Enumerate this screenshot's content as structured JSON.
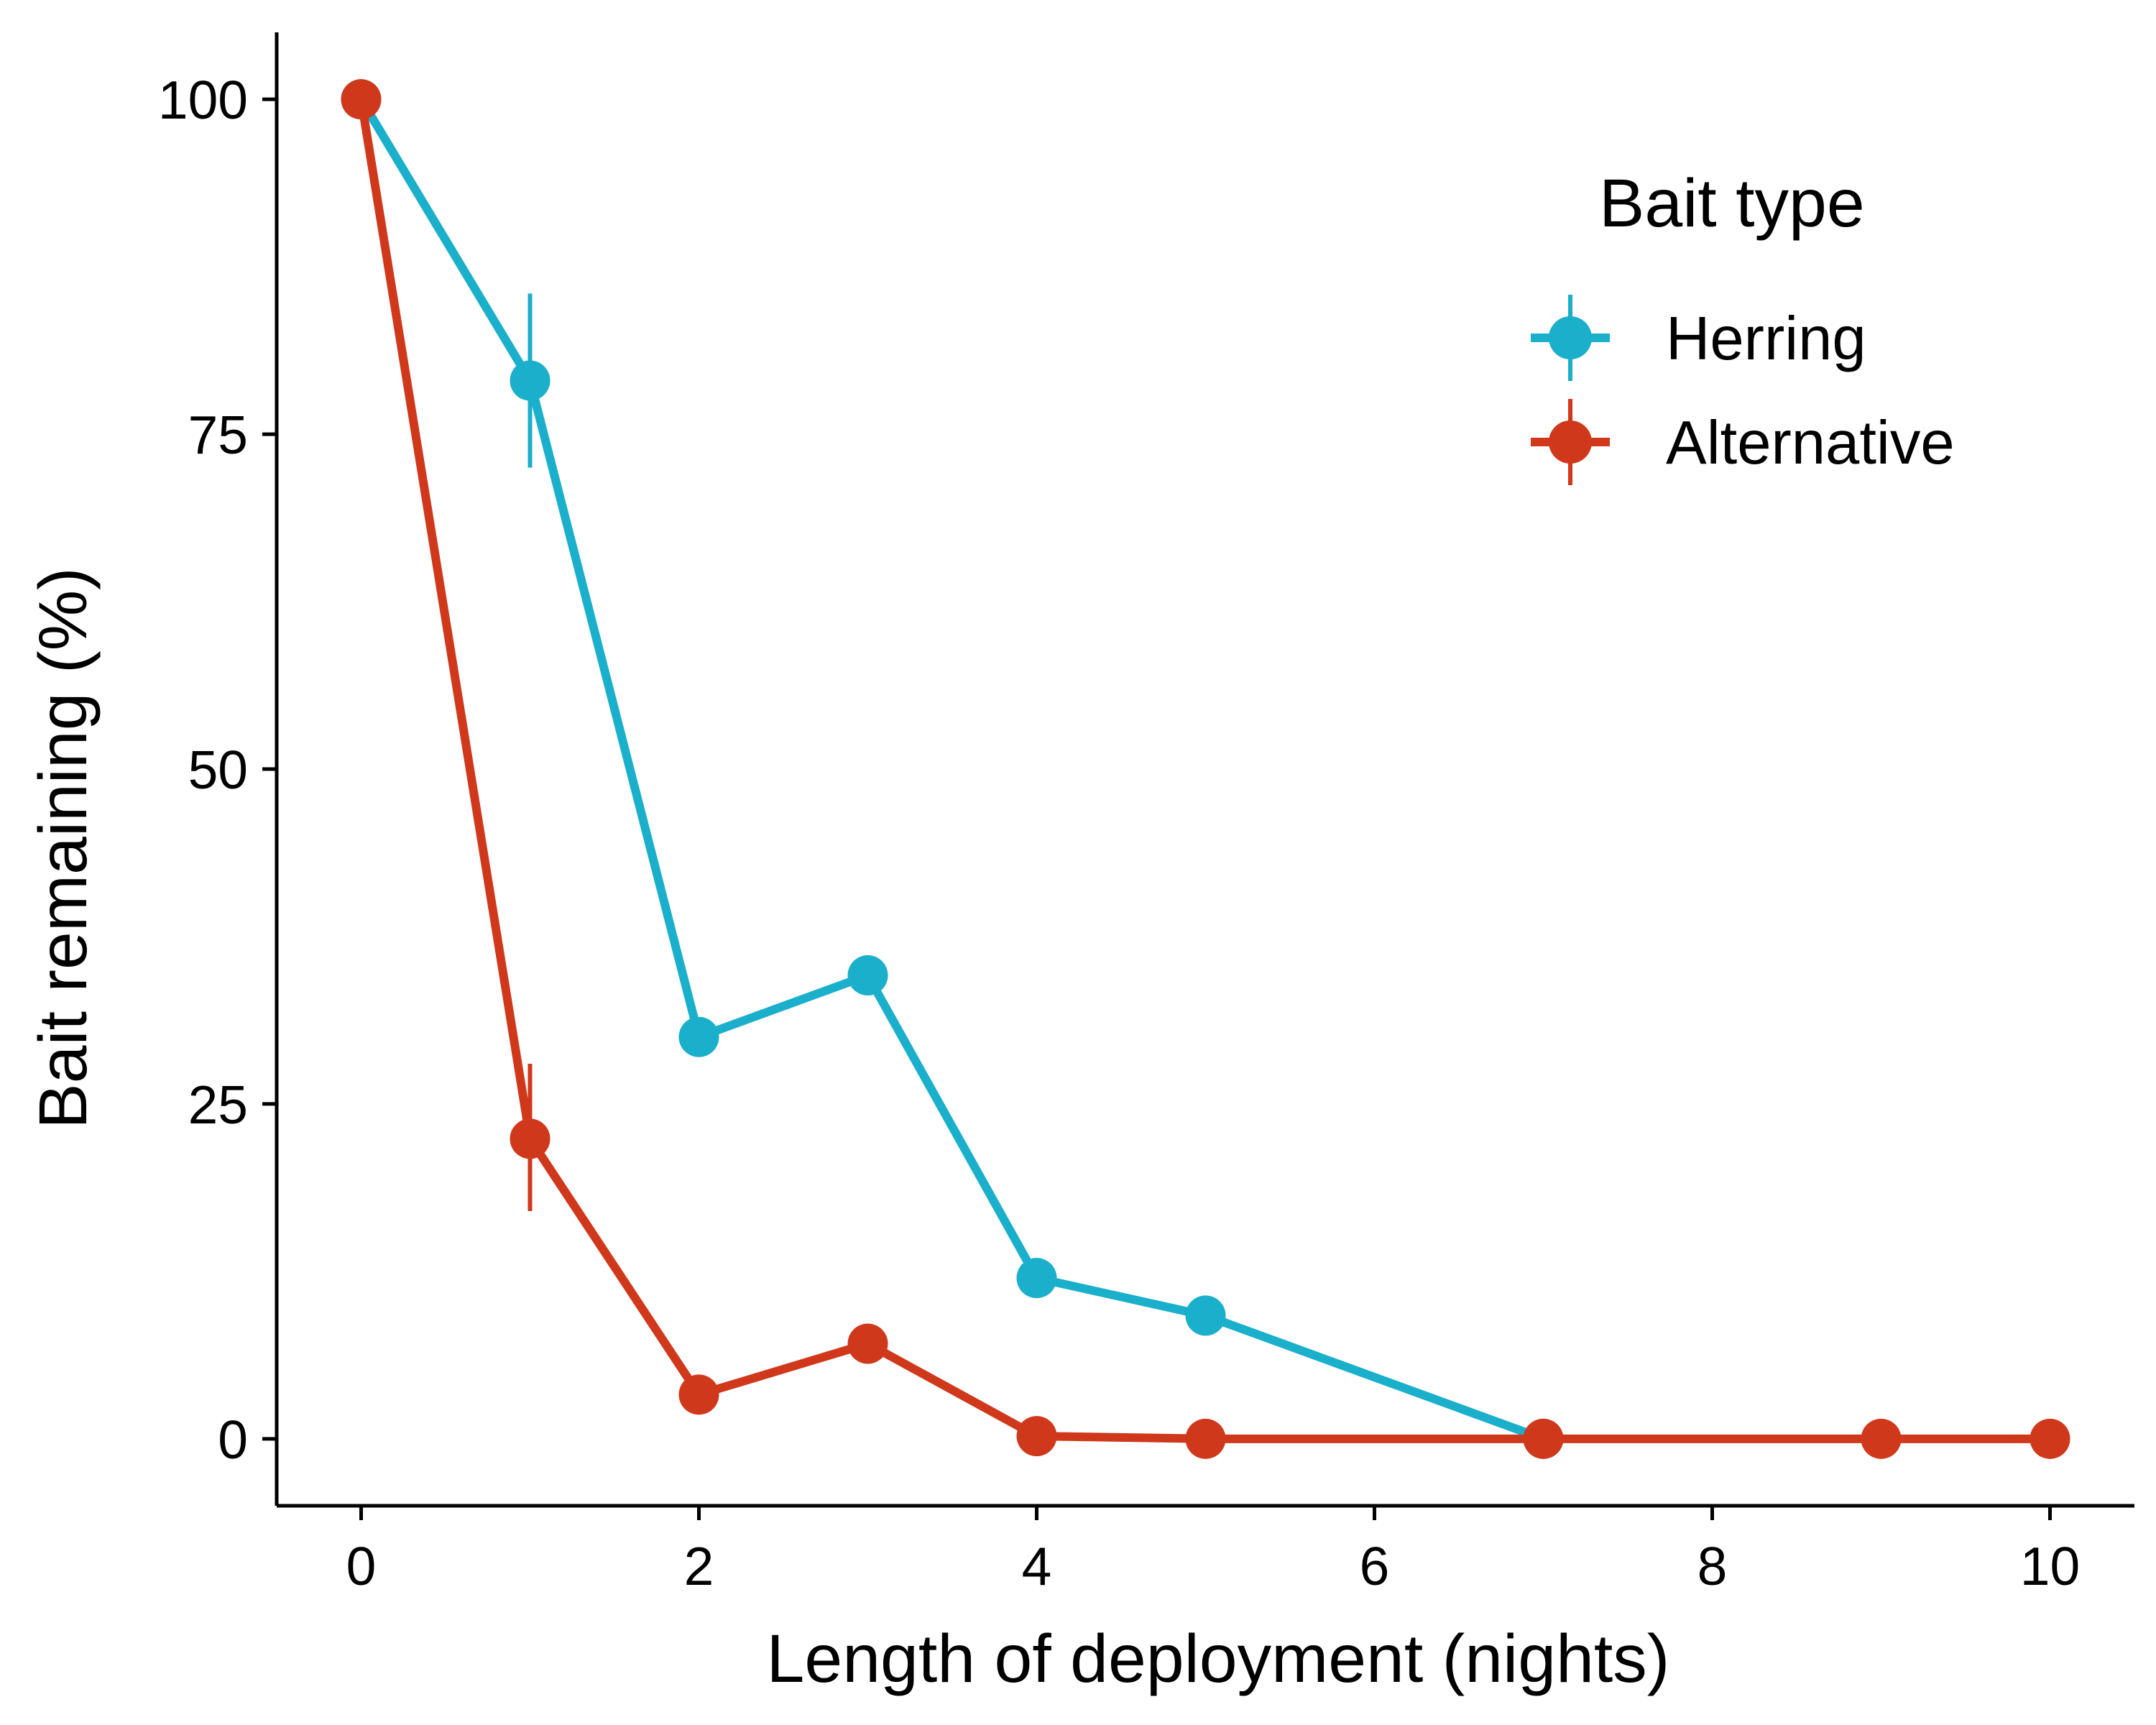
{
  "chart_data": {
    "type": "line",
    "xlabel": "Length of deployment (nights)",
    "ylabel": "Bait remaining (%)",
    "xlim": [
      -0.5,
      10.5
    ],
    "ylim": [
      -5,
      105
    ],
    "x_ticks": [
      0,
      2,
      4,
      6,
      8,
      10
    ],
    "x_tick_labels": [
      "0",
      "2",
      "4",
      "6",
      "8",
      "10"
    ],
    "y_ticks": [
      0,
      25,
      50,
      75,
      100
    ],
    "y_tick_labels": [
      "0",
      "25",
      "50",
      "75",
      "100"
    ],
    "grid": false,
    "legend": {
      "title": "Bait type",
      "placement": "top-right",
      "entries": [
        "Herring",
        "Alternative"
      ]
    },
    "series": [
      {
        "name": "Herring",
        "color": "#1AAFCB",
        "points": [
          {
            "x": 0,
            "y": 100
          },
          {
            "x": 1,
            "y": 79,
            "err_low": 72.5,
            "err_high": 85.5
          },
          {
            "x": 2,
            "y": 30
          },
          {
            "x": 3,
            "y": 34.6
          },
          {
            "x": 4,
            "y": 12
          },
          {
            "x": 5,
            "y": 9.2
          },
          {
            "x": 7,
            "y": 0
          }
        ]
      },
      {
        "name": "Alternative",
        "color": "#D0381B",
        "points": [
          {
            "x": 0,
            "y": 100
          },
          {
            "x": 1,
            "y": 22.4,
            "err_low": 17,
            "err_high": 28
          },
          {
            "x": 2,
            "y": 3.3
          },
          {
            "x": 3,
            "y": 7.1
          },
          {
            "x": 4,
            "y": 0.2
          },
          {
            "x": 5,
            "y": 0
          },
          {
            "x": 7,
            "y": 0
          },
          {
            "x": 9,
            "y": 0
          },
          {
            "x": 10,
            "y": 0
          }
        ]
      }
    ]
  }
}
